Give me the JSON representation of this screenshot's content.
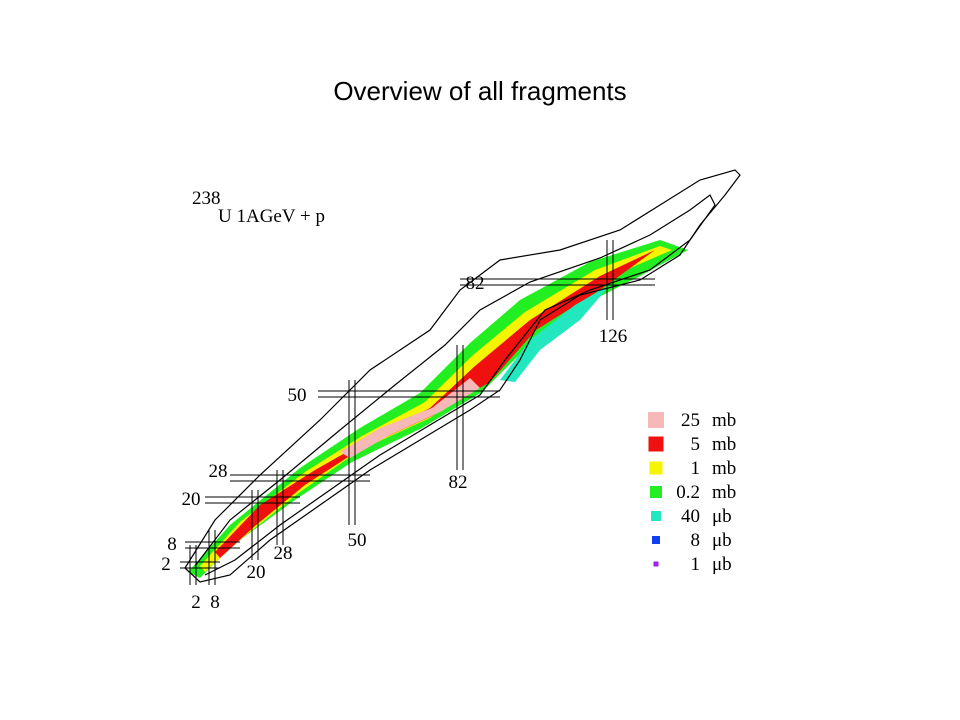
{
  "header": {
    "title": "Overview of all fragments"
  },
  "figure": {
    "reaction": {
      "mass": "238",
      "text": "U 1AGeV + p"
    },
    "proton_magic_labels": [
      "82",
      "50",
      "28",
      "20",
      "8",
      "2"
    ],
    "neutron_magic_labels": [
      "126",
      "82",
      "50",
      "28",
      "20",
      "2",
      "8"
    ],
    "legend": [
      {
        "value": "25",
        "unit": "mb",
        "color": "#f7b8b8"
      },
      {
        "value": "5",
        "unit": "mb",
        "color": "#f01010"
      },
      {
        "value": "1",
        "unit": "mb",
        "color": "#f5f500"
      },
      {
        "value": "0.2",
        "unit": "mb",
        "color": "#22ee22"
      },
      {
        "value": "40",
        "unit": "μb",
        "color": "#22e8c0"
      },
      {
        "value": "8",
        "unit": "μb",
        "color": "#1040f0"
      },
      {
        "value": "1",
        "unit": "μb",
        "color": "#a020f0"
      }
    ]
  }
}
